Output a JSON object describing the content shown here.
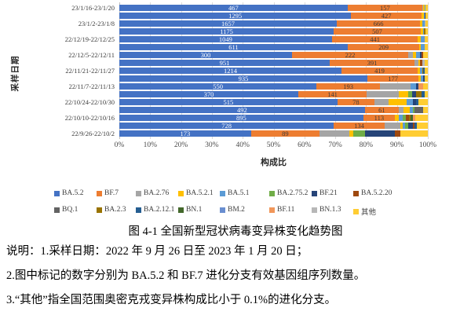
{
  "figure": {
    "caption": "图 4-1 全国新型冠状病毒变异株变化趋势图",
    "notes": [
      "说明：1.采样日期：2022 年 9 月 26 日至 2023 年 1 月 20 日；",
      "2.图中标记的数字分别为 BA.5.2 和 BF.7 进化分支有效基因组序列数量。",
      "3.“其他”指全国范围奥密克戎变异株构成比小于 0.1%的进化分支。"
    ]
  },
  "chart_data": {
    "type": "bar",
    "stacked": true,
    "orientation": "horizontal",
    "xlabel": "构成比",
    "ylabel": "采样日期",
    "xlim": [
      0,
      100
    ],
    "grid": true,
    "legend_position": "bottom",
    "x_ticks": [
      "0%",
      "10%",
      "20%",
      "30%",
      "40%",
      "50%",
      "60%",
      "70%",
      "80%",
      "90%",
      "100%"
    ],
    "series": [
      {
        "name": "BA.5.2",
        "color": "#4472C4"
      },
      {
        "name": "BF.7",
        "color": "#ED7D31"
      },
      {
        "name": "BA.2.76",
        "color": "#A5A5A5"
      },
      {
        "name": "BA.5.2.1",
        "color": "#FFC000"
      },
      {
        "name": "BA.5.1",
        "color": "#5B9BD5"
      },
      {
        "name": "BA.2.75.2",
        "color": "#70AD47"
      },
      {
        "name": "BF.21",
        "color": "#264478"
      },
      {
        "name": "BA.5.2.20",
        "color": "#9E480E"
      },
      {
        "name": "BQ.1",
        "color": "#636363"
      },
      {
        "name": "BA.2.3",
        "color": "#997300"
      },
      {
        "name": "BA.2.12.1",
        "color": "#255E91"
      },
      {
        "name": "BN.1",
        "color": "#43682B"
      },
      {
        "name": "BM.2",
        "color": "#698ED0"
      },
      {
        "name": "BF.11",
        "color": "#F1975A"
      },
      {
        "name": "BN.1.3",
        "color": "#B7B7B7"
      },
      {
        "name": "其他",
        "color": "#FFCD33"
      }
    ],
    "rows": [
      {
        "label": "23/1/16-23/1/20",
        "ba52_count": 467,
        "bf7_count": 157,
        "values": [
          74.0,
          24.2,
          0.2,
          0.6,
          0.2,
          0,
          0,
          0,
          0,
          0,
          0,
          0,
          0,
          0,
          0,
          0.8
        ]
      },
      {
        "label": "",
        "ba52_count": 1295,
        "bf7_count": 427,
        "values": [
          75.1,
          22.9,
          0,
          0.7,
          0.2,
          0,
          0.3,
          0,
          0,
          0,
          0,
          0,
          0,
          0,
          0,
          0.8
        ]
      },
      {
        "label": "23/1/2-23/1/8",
        "ba52_count": 1657,
        "bf7_count": 666,
        "values": [
          70.5,
          27.0,
          0,
          0.7,
          0.7,
          0,
          0,
          0,
          0,
          0,
          0,
          0,
          0,
          0,
          0.3,
          0.8
        ]
      },
      {
        "label": "",
        "ba52_count": 1175,
        "bf7_count": 507,
        "values": [
          69.5,
          28.2,
          0,
          0.8,
          0.3,
          0,
          0,
          0,
          0,
          0.4,
          0,
          0,
          0,
          0,
          0,
          0.8
        ]
      },
      {
        "label": "22/12/19-22/12/25",
        "ba52_count": 1049,
        "bf7_count": 441,
        "values": [
          68.9,
          27.9,
          0,
          0.9,
          1.0,
          0,
          0,
          0,
          0,
          0,
          0,
          0,
          0.4,
          0,
          0,
          0.9
        ]
      },
      {
        "label": "",
        "ba52_count": 611,
        "bf7_count": 209,
        "values": [
          74.0,
          23.3,
          0,
          0.5,
          1.2,
          0,
          0,
          0,
          0,
          0,
          0,
          0,
          0,
          0,
          0,
          1.0
        ]
      },
      {
        "label": "22/12/5-22/12/11",
        "ba52_count": 300,
        "bf7_count": 222,
        "values": [
          56.0,
          37.6,
          1.6,
          1.1,
          1.1,
          0,
          0.6,
          0.6,
          0,
          0,
          0,
          0,
          0,
          0,
          0,
          1.4
        ]
      },
      {
        "label": "",
        "ba52_count": 951,
        "bf7_count": 391,
        "values": [
          68.2,
          27.5,
          1.3,
          0.5,
          0,
          0,
          0,
          0.8,
          0,
          0,
          0,
          0,
          0,
          0,
          0.7,
          1.0
        ]
      },
      {
        "label": "22/11/21-22/11/27",
        "ba52_count": 1214,
        "bf7_count": 419,
        "values": [
          72.0,
          24.7,
          0,
          0.8,
          0.6,
          0,
          0,
          0,
          0,
          0.5,
          0.4,
          0,
          0,
          0,
          0,
          1.0
        ]
      },
      {
        "label": "",
        "ba52_count": 935,
        "bf7_count": 177,
        "values": [
          80.4,
          16.6,
          0,
          0.7,
          0.8,
          0,
          0.5,
          0,
          0,
          0,
          0,
          0,
          0,
          0,
          0,
          1.0
        ]
      },
      {
        "label": "22/11/7-22/11/13",
        "ba52_count": 550,
        "bf7_count": 193,
        "values": [
          63.9,
          20.6,
          9.9,
          0,
          1.7,
          0,
          0.8,
          0,
          0,
          0,
          0,
          0,
          0,
          1.6,
          0,
          1.5
        ]
      },
      {
        "label": "",
        "ba52_count": 370,
        "bf7_count": 141,
        "values": [
          58.0,
          22.2,
          10.4,
          3.0,
          0,
          1.2,
          1.5,
          0,
          0,
          1.6,
          1.1,
          0,
          0,
          0,
          0,
          1.0
        ]
      },
      {
        "label": "22/10/24-22/10/30",
        "ba52_count": 515,
        "bf7_count": 78,
        "values": [
          70.7,
          12.0,
          4.6,
          5.8,
          2.0,
          0,
          1.0,
          0,
          0,
          0,
          0.8,
          0,
          0,
          0,
          0,
          3.1
        ]
      },
      {
        "label": "",
        "ba52_count": 492,
        "bf7_count": 61,
        "values": [
          79.6,
          11.0,
          1.5,
          2.0,
          1.0,
          0.6,
          0,
          0,
          2.8,
          0,
          0,
          0,
          0,
          0,
          0,
          1.5
        ]
      },
      {
        "label": "22/10/10-22/10/16",
        "ba52_count": 895,
        "bf7_count": 113,
        "values": [
          79.1,
          10.2,
          0,
          1.3,
          1.3,
          1.1,
          0,
          0.8,
          0,
          0.7,
          0,
          0.8,
          0,
          0.6,
          0,
          4.1
        ]
      },
      {
        "label": "",
        "ba52_count": 728,
        "bf7_count": 134,
        "values": [
          69.5,
          16.5,
          5.1,
          0.8,
          0.8,
          1.0,
          1.5,
          0.5,
          0,
          0,
          0.8,
          0,
          0,
          0,
          0,
          3.5
        ]
      },
      {
        "label": "22/9/26-22/10/2",
        "ba52_count": 173,
        "bf7_count": 89,
        "values": [
          42.7,
          22.2,
          9.7,
          1.3,
          0,
          3.8,
          9.7,
          1.8,
          0,
          0,
          0,
          0,
          0,
          0,
          0,
          8.8
        ]
      }
    ]
  }
}
